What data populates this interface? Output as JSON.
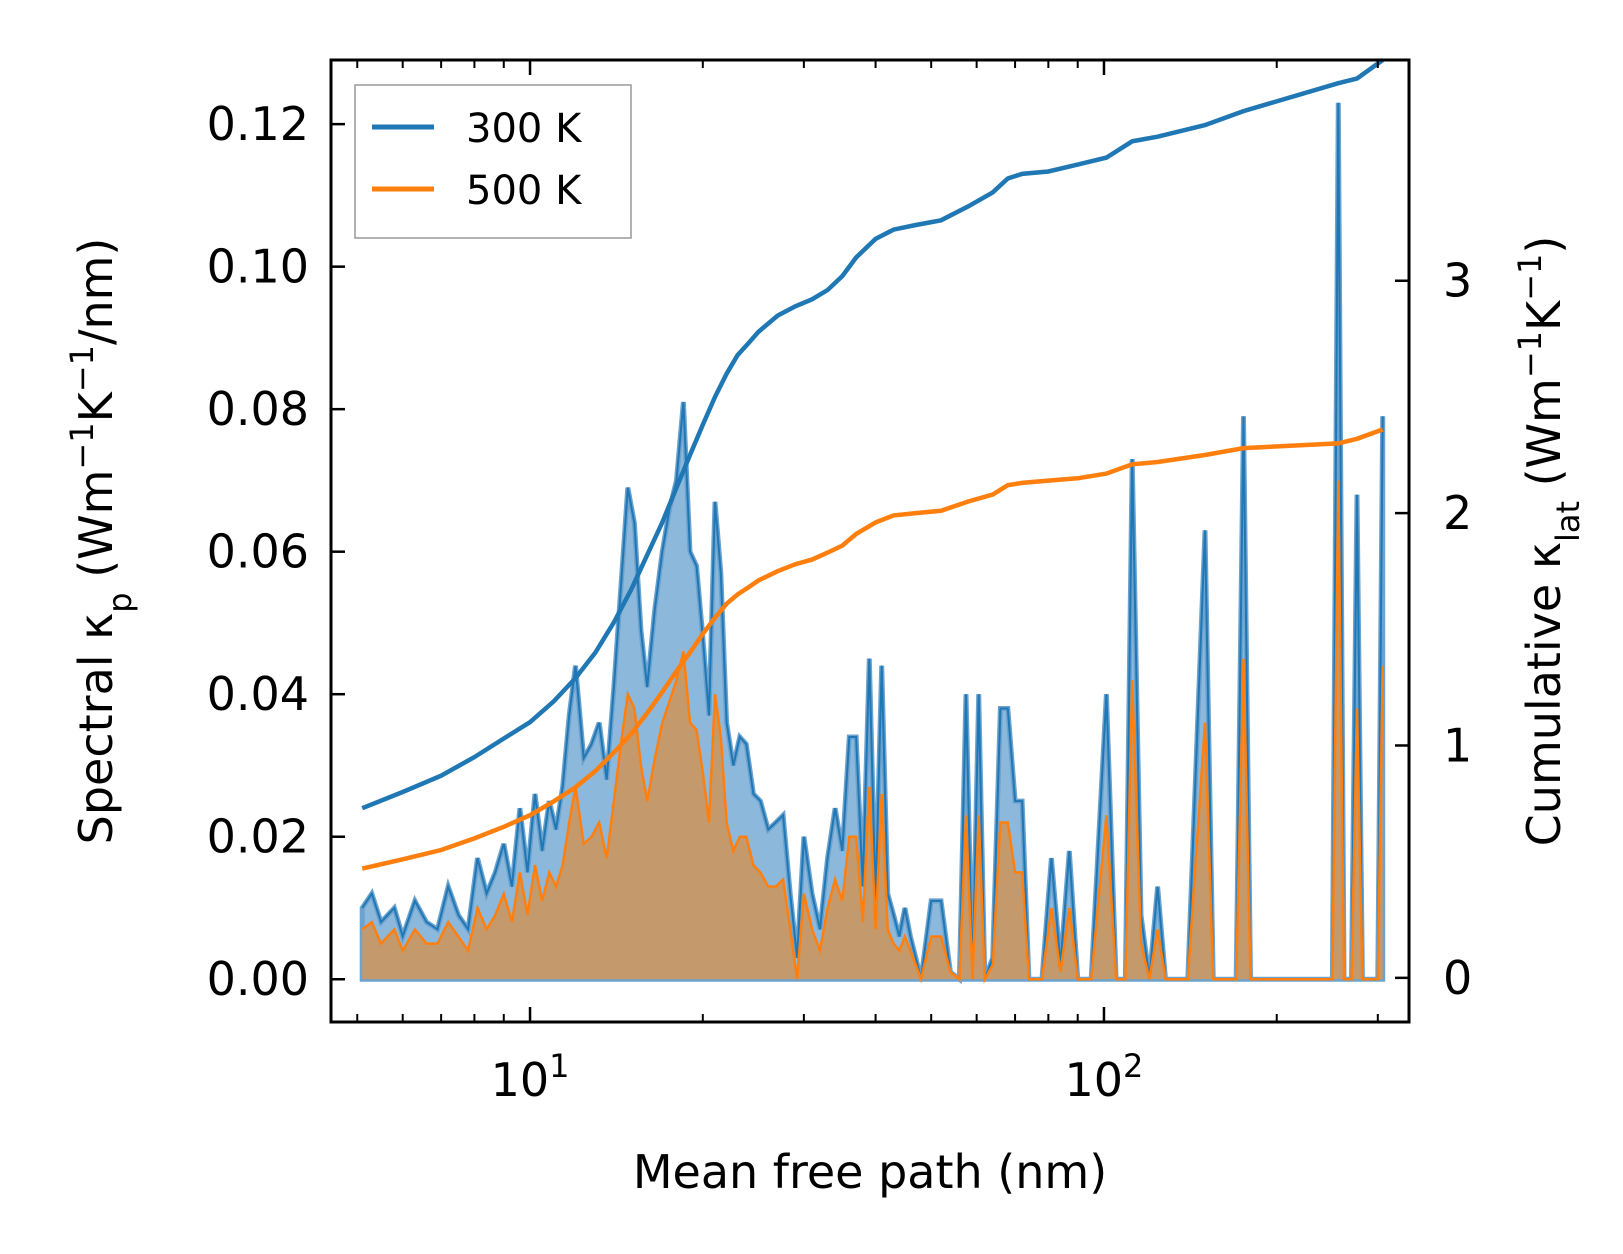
{
  "chart_data": {
    "type": "area",
    "xscale": "log",
    "xlabel": "Mean free path (nm)",
    "ylabel_parts": [
      "Spectral κ",
      "p",
      " (Wm",
      "−1",
      "K",
      "−1",
      "/nm)"
    ],
    "ylabel2_parts": [
      "Cumulative κ",
      "lat",
      " (Wm",
      "−1",
      "K",
      "−1",
      ")"
    ],
    "xlim": [
      4.5,
      340
    ],
    "ylim": [
      -0.006,
      0.129
    ],
    "y2lim": [
      -0.19,
      3.95
    ],
    "x_major_ticks": [
      {
        "value": 10,
        "base": "10",
        "exp": "1"
      },
      {
        "value": 100,
        "base": "10",
        "exp": "2"
      }
    ],
    "y_ticks": [
      "0.00",
      "0.02",
      "0.04",
      "0.06",
      "0.08",
      "0.10",
      "0.12"
    ],
    "y2_ticks": [
      "0",
      "1",
      "2",
      "3"
    ],
    "legend": {
      "position": "top-left",
      "entries": [
        "300 K",
        "500 K"
      ]
    },
    "colors": {
      "s300": "#1f77b4",
      "s500": "#ff7f0e",
      "fill300": "#8cb8dc",
      "fill500": "#c49a6c"
    },
    "spectral_300": [
      [
        5.1,
        0.01
      ],
      [
        5.3,
        0.012
      ],
      [
        5.5,
        0.008
      ],
      [
        5.8,
        0.01
      ],
      [
        6.0,
        0.006
      ],
      [
        6.3,
        0.011
      ],
      [
        6.6,
        0.008
      ],
      [
        6.9,
        0.007
      ],
      [
        7.2,
        0.013
      ],
      [
        7.5,
        0.009
      ],
      [
        7.8,
        0.007
      ],
      [
        8.1,
        0.017
      ],
      [
        8.4,
        0.012
      ],
      [
        8.7,
        0.015
      ],
      [
        9.0,
        0.019
      ],
      [
        9.3,
        0.013
      ],
      [
        9.6,
        0.024
      ],
      [
        9.9,
        0.015
      ],
      [
        10.2,
        0.026
      ],
      [
        10.5,
        0.018
      ],
      [
        10.8,
        0.025
      ],
      [
        11.1,
        0.021
      ],
      [
        11.4,
        0.027
      ],
      [
        11.7,
        0.037
      ],
      [
        12.0,
        0.044
      ],
      [
        12.4,
        0.031
      ],
      [
        12.8,
        0.033
      ],
      [
        13.2,
        0.036
      ],
      [
        13.6,
        0.028
      ],
      [
        14.0,
        0.041
      ],
      [
        14.4,
        0.055
      ],
      [
        14.8,
        0.069
      ],
      [
        15.2,
        0.064
      ],
      [
        15.6,
        0.049
      ],
      [
        16.0,
        0.041
      ],
      [
        16.5,
        0.052
      ],
      [
        17.0,
        0.06
      ],
      [
        17.5,
        0.066
      ],
      [
        18.0,
        0.07
      ],
      [
        18.5,
        0.081
      ],
      [
        19.0,
        0.06
      ],
      [
        19.5,
        0.058
      ],
      [
        20.0,
        0.048
      ],
      [
        20.5,
        0.037
      ],
      [
        21.0,
        0.067
      ],
      [
        21.5,
        0.057
      ],
      [
        22.0,
        0.036
      ],
      [
        22.6,
        0.03
      ],
      [
        23.2,
        0.034
      ],
      [
        23.8,
        0.033
      ],
      [
        24.5,
        0.026
      ],
      [
        25.2,
        0.025
      ],
      [
        26.0,
        0.021
      ],
      [
        26.8,
        0.022
      ],
      [
        27.6,
        0.023
      ],
      [
        28.4,
        0.012
      ],
      [
        29.2,
        0.003
      ],
      [
        30.0,
        0.02
      ],
      [
        31.0,
        0.012
      ],
      [
        32.0,
        0.007
      ],
      [
        33.0,
        0.017
      ],
      [
        34.0,
        0.024
      ],
      [
        35.0,
        0.018
      ],
      [
        36.0,
        0.034
      ],
      [
        37.0,
        0.034
      ],
      [
        38.0,
        0.013
      ],
      [
        39.0,
        0.045
      ],
      [
        40.0,
        0.011
      ],
      [
        41.0,
        0.044
      ],
      [
        42.0,
        0.012
      ],
      [
        43.0,
        0.009
      ],
      [
        44.0,
        0.006
      ],
      [
        45.0,
        0.01
      ],
      [
        46.0,
        0.006
      ],
      [
        47.0,
        0.003
      ],
      [
        48.0,
        0.0
      ],
      [
        50.0,
        0.011
      ],
      [
        52.0,
        0.011
      ],
      [
        54.0,
        0.001
      ],
      [
        56.0,
        0.0
      ],
      [
        57.5,
        0.04
      ],
      [
        59.0,
        0.0
      ],
      [
        60.5,
        0.04
      ],
      [
        62.0,
        0.0
      ],
      [
        64.0,
        0.003
      ],
      [
        66.0,
        0.038
      ],
      [
        68.0,
        0.038
      ],
      [
        70.0,
        0.025
      ],
      [
        72.0,
        0.025
      ],
      [
        74.0,
        0.0
      ],
      [
        78.0,
        0.0
      ],
      [
        81.0,
        0.017
      ],
      [
        84.0,
        0.002
      ],
      [
        87.0,
        0.018
      ],
      [
        90.0,
        0.0
      ],
      [
        95.0,
        0.0
      ],
      [
        101.0,
        0.04
      ],
      [
        105.0,
        0.0
      ],
      [
        109.0,
        0.0
      ],
      [
        112.0,
        0.073
      ],
      [
        116.0,
        0.009
      ],
      [
        120.0,
        0.0
      ],
      [
        124.0,
        0.013
      ],
      [
        128.0,
        0.0
      ],
      [
        140.0,
        0.0
      ],
      [
        150.0,
        0.063
      ],
      [
        155.0,
        0.0
      ],
      [
        170.0,
        0.0
      ],
      [
        175.0,
        0.079
      ],
      [
        180.0,
        0.0
      ],
      [
        250.0,
        0.0
      ],
      [
        256.0,
        0.123
      ],
      [
        262.0,
        0.0
      ],
      [
        270.0,
        0.0
      ],
      [
        276.0,
        0.068
      ],
      [
        282.0,
        0.0
      ],
      [
        300.0,
        0.0
      ],
      [
        306.0,
        0.079
      ]
    ],
    "spectral_500": [
      [
        5.1,
        0.007
      ],
      [
        5.3,
        0.008
      ],
      [
        5.5,
        0.005
      ],
      [
        5.8,
        0.007
      ],
      [
        6.0,
        0.004
      ],
      [
        6.3,
        0.007
      ],
      [
        6.6,
        0.005
      ],
      [
        6.9,
        0.005
      ],
      [
        7.2,
        0.008
      ],
      [
        7.5,
        0.006
      ],
      [
        7.8,
        0.004
      ],
      [
        8.1,
        0.01
      ],
      [
        8.4,
        0.007
      ],
      [
        8.7,
        0.009
      ],
      [
        9.0,
        0.012
      ],
      [
        9.3,
        0.008
      ],
      [
        9.6,
        0.015
      ],
      [
        9.9,
        0.009
      ],
      [
        10.2,
        0.016
      ],
      [
        10.5,
        0.011
      ],
      [
        10.8,
        0.015
      ],
      [
        11.1,
        0.013
      ],
      [
        11.4,
        0.016
      ],
      [
        11.7,
        0.022
      ],
      [
        12.0,
        0.027
      ],
      [
        12.4,
        0.019
      ],
      [
        12.8,
        0.02
      ],
      [
        13.2,
        0.022
      ],
      [
        13.6,
        0.017
      ],
      [
        14.0,
        0.025
      ],
      [
        14.4,
        0.033
      ],
      [
        14.8,
        0.04
      ],
      [
        15.2,
        0.038
      ],
      [
        15.6,
        0.03
      ],
      [
        16.0,
        0.025
      ],
      [
        16.5,
        0.031
      ],
      [
        17.0,
        0.036
      ],
      [
        17.5,
        0.039
      ],
      [
        18.0,
        0.042
      ],
      [
        18.5,
        0.046
      ],
      [
        19.0,
        0.036
      ],
      [
        19.5,
        0.035
      ],
      [
        20.0,
        0.029
      ],
      [
        20.5,
        0.022
      ],
      [
        21.0,
        0.04
      ],
      [
        21.5,
        0.034
      ],
      [
        22.0,
        0.022
      ],
      [
        22.6,
        0.018
      ],
      [
        23.2,
        0.02
      ],
      [
        23.8,
        0.02
      ],
      [
        24.5,
        0.016
      ],
      [
        25.2,
        0.015
      ],
      [
        26.0,
        0.013
      ],
      [
        26.8,
        0.013
      ],
      [
        27.6,
        0.014
      ],
      [
        28.4,
        0.007
      ],
      [
        29.2,
        0.0
      ],
      [
        30.0,
        0.012
      ],
      [
        31.0,
        0.007
      ],
      [
        32.0,
        0.004
      ],
      [
        33.0,
        0.01
      ],
      [
        34.0,
        0.014
      ],
      [
        35.0,
        0.011
      ],
      [
        36.0,
        0.02
      ],
      [
        37.0,
        0.02
      ],
      [
        38.0,
        0.008
      ],
      [
        39.0,
        0.027
      ],
      [
        40.0,
        0.007
      ],
      [
        41.0,
        0.026
      ],
      [
        42.0,
        0.007
      ],
      [
        43.0,
        0.005
      ],
      [
        44.0,
        0.004
      ],
      [
        45.0,
        0.006
      ],
      [
        46.0,
        0.004
      ],
      [
        47.0,
        0.002
      ],
      [
        48.0,
        0.0
      ],
      [
        50.0,
        0.006
      ],
      [
        52.0,
        0.006
      ],
      [
        54.0,
        0.001
      ],
      [
        56.0,
        0.0
      ],
      [
        57.5,
        0.023
      ],
      [
        59.0,
        0.0
      ],
      [
        60.5,
        0.023
      ],
      [
        62.0,
        0.0
      ],
      [
        64.0,
        0.002
      ],
      [
        66.0,
        0.022
      ],
      [
        68.0,
        0.022
      ],
      [
        70.0,
        0.015
      ],
      [
        72.0,
        0.015
      ],
      [
        74.0,
        0.0
      ],
      [
        78.0,
        0.0
      ],
      [
        81.0,
        0.01
      ],
      [
        84.0,
        0.001
      ],
      [
        87.0,
        0.01
      ],
      [
        90.0,
        0.0
      ],
      [
        95.0,
        0.0
      ],
      [
        101.0,
        0.023
      ],
      [
        105.0,
        0.0
      ],
      [
        109.0,
        0.0
      ],
      [
        112.0,
        0.042
      ],
      [
        116.0,
        0.005
      ],
      [
        120.0,
        0.0
      ],
      [
        124.0,
        0.007
      ],
      [
        128.0,
        0.0
      ],
      [
        140.0,
        0.0
      ],
      [
        150.0,
        0.036
      ],
      [
        155.0,
        0.0
      ],
      [
        170.0,
        0.0
      ],
      [
        175.0,
        0.045
      ],
      [
        180.0,
        0.0
      ],
      [
        250.0,
        0.0
      ],
      [
        256.0,
        0.07
      ],
      [
        262.0,
        0.0
      ],
      [
        270.0,
        0.0
      ],
      [
        276.0,
        0.038
      ],
      [
        282.0,
        0.0
      ],
      [
        300.0,
        0.0
      ],
      [
        306.0,
        0.044
      ]
    ],
    "cumulative_300": [
      [
        5.1,
        0.73
      ],
      [
        6.0,
        0.8
      ],
      [
        7.0,
        0.87
      ],
      [
        8.0,
        0.95
      ],
      [
        9.0,
        1.03
      ],
      [
        10.0,
        1.1
      ],
      [
        11.0,
        1.19
      ],
      [
        12.0,
        1.29
      ],
      [
        13.0,
        1.4
      ],
      [
        14.0,
        1.53
      ],
      [
        15.0,
        1.67
      ],
      [
        16.0,
        1.82
      ],
      [
        17.0,
        1.96
      ],
      [
        18.0,
        2.11
      ],
      [
        19.0,
        2.25
      ],
      [
        20.0,
        2.38
      ],
      [
        21.0,
        2.5
      ],
      [
        22.0,
        2.6
      ],
      [
        23.0,
        2.68
      ],
      [
        24.0,
        2.73
      ],
      [
        25.0,
        2.78
      ],
      [
        27.0,
        2.85
      ],
      [
        29.0,
        2.89
      ],
      [
        31.0,
        2.92
      ],
      [
        33.0,
        2.96
      ],
      [
        35.0,
        3.02
      ],
      [
        37.0,
        3.1
      ],
      [
        40.0,
        3.18
      ],
      [
        43.0,
        3.22
      ],
      [
        47.0,
        3.24
      ],
      [
        52.0,
        3.26
      ],
      [
        58.0,
        3.32
      ],
      [
        64.0,
        3.38
      ],
      [
        68.0,
        3.44
      ],
      [
        72.0,
        3.46
      ],
      [
        80.0,
        3.47
      ],
      [
        90.0,
        3.5
      ],
      [
        101.0,
        3.53
      ],
      [
        112.0,
        3.6
      ],
      [
        124.0,
        3.62
      ],
      [
        150.0,
        3.67
      ],
      [
        175.0,
        3.73
      ],
      [
        256.0,
        3.85
      ],
      [
        276.0,
        3.87
      ],
      [
        306.0,
        3.95
      ]
    ],
    "cumulative_500": [
      [
        5.1,
        0.47
      ],
      [
        6.0,
        0.51
      ],
      [
        7.0,
        0.55
      ],
      [
        8.0,
        0.6
      ],
      [
        9.0,
        0.65
      ],
      [
        10.0,
        0.7
      ],
      [
        11.0,
        0.76
      ],
      [
        12.0,
        0.82
      ],
      [
        13.0,
        0.89
      ],
      [
        14.0,
        0.97
      ],
      [
        15.0,
        1.05
      ],
      [
        16.0,
        1.14
      ],
      [
        17.0,
        1.23
      ],
      [
        18.0,
        1.32
      ],
      [
        19.0,
        1.4
      ],
      [
        20.0,
        1.48
      ],
      [
        21.0,
        1.55
      ],
      [
        22.0,
        1.61
      ],
      [
        23.0,
        1.65
      ],
      [
        24.0,
        1.68
      ],
      [
        25.0,
        1.71
      ],
      [
        27.0,
        1.75
      ],
      [
        29.0,
        1.78
      ],
      [
        31.0,
        1.8
      ],
      [
        33.0,
        1.83
      ],
      [
        35.0,
        1.86
      ],
      [
        37.0,
        1.91
      ],
      [
        40.0,
        1.96
      ],
      [
        43.0,
        1.99
      ],
      [
        47.0,
        2.0
      ],
      [
        52.0,
        2.01
      ],
      [
        58.0,
        2.05
      ],
      [
        64.0,
        2.08
      ],
      [
        68.0,
        2.12
      ],
      [
        72.0,
        2.13
      ],
      [
        80.0,
        2.14
      ],
      [
        90.0,
        2.15
      ],
      [
        101.0,
        2.17
      ],
      [
        112.0,
        2.21
      ],
      [
        124.0,
        2.22
      ],
      [
        150.0,
        2.25
      ],
      [
        175.0,
        2.28
      ],
      [
        256.0,
        2.3
      ],
      [
        276.0,
        2.32
      ],
      [
        306.0,
        2.36
      ]
    ]
  }
}
